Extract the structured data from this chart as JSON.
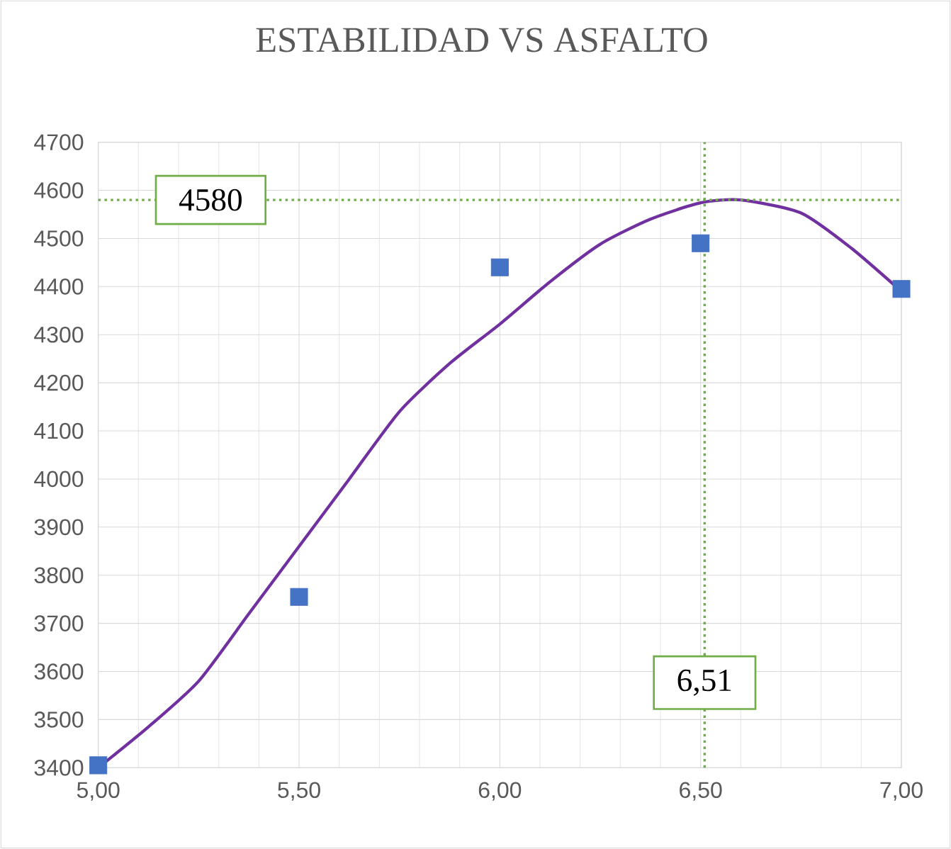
{
  "chart_data": {
    "type": "scatter",
    "title": "ESTABILIDAD VS ASFALTO",
    "series": [
      {
        "color": "#4472c4",
        "marker": "square",
        "x": [
          5.0,
          5.5,
          6.0,
          6.5,
          7.0
        ],
        "values": [
          3405,
          3755,
          4440,
          4490,
          4395
        ]
      },
      {
        "type": "line",
        "color": "#7030a0",
        "marker": "none",
        "x": [
          5.0,
          5.125,
          5.25,
          5.375,
          5.5,
          5.625,
          5.75,
          5.875,
          6.0,
          6.125,
          6.25,
          6.375,
          6.5,
          6.6,
          6.75,
          6.875,
          7.0
        ],
        "values": [
          3400,
          3485,
          3580,
          3720,
          3860,
          4000,
          4140,
          4240,
          4322,
          4410,
          4488,
          4540,
          4574,
          4580,
          4553,
          4480,
          4390
        ]
      }
    ],
    "xlim": [
      5.0,
      7.0
    ],
    "ylim": [
      3400,
      4700
    ],
    "xticks": [
      {
        "value": 5.0,
        "label": "5,00"
      },
      {
        "value": 5.5,
        "label": "5,50"
      },
      {
        "value": 6.0,
        "label": "6,00"
      },
      {
        "value": 6.5,
        "label": "6,50"
      },
      {
        "value": 7.0,
        "label": "7,00"
      }
    ],
    "yticks": [
      3400,
      3500,
      3600,
      3700,
      3800,
      3900,
      4000,
      4100,
      4200,
      4300,
      4400,
      4500,
      4600,
      4700
    ],
    "grid": true,
    "ref_lines": [
      {
        "axis": "y",
        "value": 4580,
        "label": "4580",
        "color": "#70ad47",
        "line_style": "dotted"
      },
      {
        "axis": "x",
        "value": 6.51,
        "label": "6,51",
        "color": "#70ad47",
        "line_style": "dotted"
      }
    ]
  }
}
